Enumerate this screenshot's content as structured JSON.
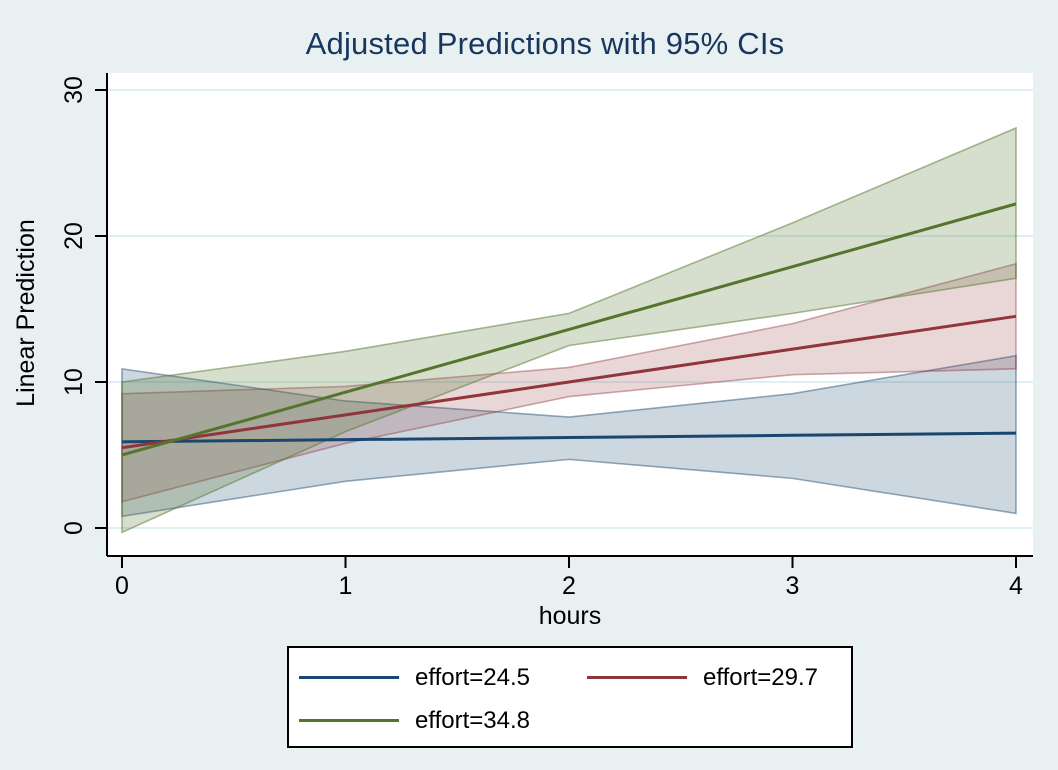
{
  "chart_data": {
    "type": "line",
    "title": "Adjusted Predictions with 95% CIs",
    "xlabel": "hours",
    "ylabel": "Linear Prediction",
    "x": [
      0,
      1,
      2,
      3,
      4
    ],
    "xticks": [
      0,
      1,
      2,
      3,
      4
    ],
    "yticks": [
      0,
      10,
      20,
      30
    ],
    "xlim": [
      -0.07,
      4.08
    ],
    "ylim": [
      -1.9,
      31.2
    ],
    "grid": "horizontal-only",
    "legend_position": "bottom-center",
    "ci_label": "95% CI",
    "series": [
      {
        "name": "effort=24.5",
        "slug": "effort-24-5",
        "color": "#1a476f",
        "fill": "rgba(26,71,111,0.22)",
        "edge": "rgba(26,71,111,0.45)",
        "fit": [
          5.9,
          6.05,
          6.2,
          6.35,
          6.5
        ],
        "ci_lower": [
          0.8,
          3.2,
          4.7,
          3.4,
          1.0
        ],
        "ci_upper": [
          10.9,
          8.7,
          7.6,
          9.2,
          11.8
        ]
      },
      {
        "name": "effort=29.7",
        "slug": "effort-29-7",
        "color": "#90353b",
        "fill": "rgba(144,53,59,0.20)",
        "edge": "rgba(144,53,59,0.42)",
        "fit": [
          5.5,
          7.75,
          10.0,
          12.25,
          14.5
        ],
        "ci_lower": [
          1.8,
          5.8,
          9.0,
          10.5,
          10.9
        ],
        "ci_upper": [
          9.2,
          9.7,
          11.0,
          14.0,
          18.1
        ]
      },
      {
        "name": "effort=34.8",
        "slug": "effort-34-8",
        "color": "#55752f",
        "fill": "rgba(85,117,47,0.24)",
        "edge": "rgba(85,117,47,0.50)",
        "fit": [
          5.0,
          9.3,
          13.6,
          17.9,
          22.2
        ],
        "ci_lower": [
          -0.3,
          6.6,
          12.5,
          14.7,
          17.1
        ],
        "ci_upper": [
          10.0,
          12.1,
          14.7,
          20.9,
          27.4
        ]
      }
    ]
  },
  "style": {
    "background": "#e9f0f2",
    "plot_background": "#ffffff",
    "gridline_color": "#dff0f4",
    "axis_color": "#000000",
    "title_color": "#17375e",
    "text_color": "#000000",
    "legend_background": "#ffffff",
    "legend_border": "#000000"
  }
}
